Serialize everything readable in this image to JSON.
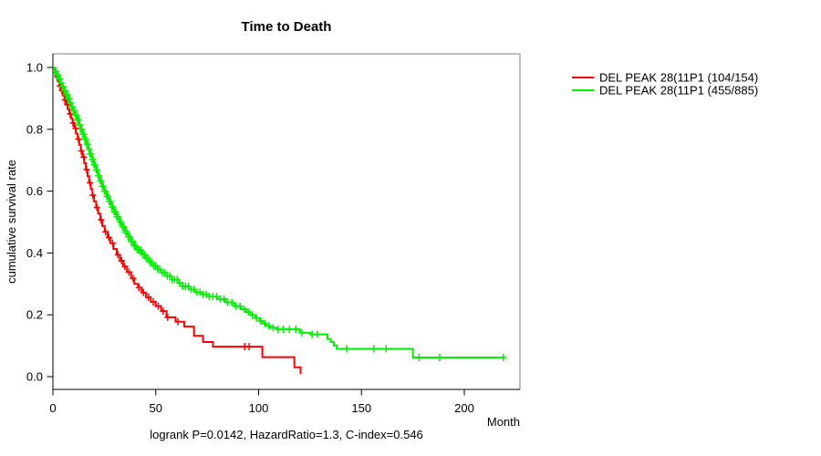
{
  "chart_data": {
    "type": "line",
    "subtype": "kaplan-meier-step-curves",
    "title": "Time to Death",
    "xlabel": "Month",
    "ylabel": "cumulative survival rate",
    "annotation": "logrank P=0.0142, HazardRatio=1.3, C-index=0.546",
    "xlim": [
      0,
      227
    ],
    "ylim": [
      0.0,
      1.0
    ],
    "xticks": [
      0,
      50,
      100,
      150,
      200
    ],
    "xtick_labels": [
      "0",
      "50",
      "100",
      "150",
      "200"
    ],
    "yticks": [
      0.0,
      0.2,
      0.4,
      0.6,
      0.8,
      1.0
    ],
    "ytick_labels": [
      "0.0",
      "0.2",
      "0.4",
      "0.6",
      "0.8",
      "1.0"
    ],
    "grid": false,
    "legend_position": "right-outside",
    "frame_color": "#808080",
    "axis_color": "#000000",
    "series": [
      {
        "name": "DEL PEAK 28(11P1 (104/154)",
        "color": "#ff0000",
        "events_total": "104/154",
        "steps": [
          [
            0,
            1
          ],
          [
            0.8,
            0.985
          ],
          [
            1.6,
            0.97
          ],
          [
            2.4,
            0.955
          ],
          [
            3.2,
            0.94
          ],
          [
            4,
            0.925
          ],
          [
            4.8,
            0.91
          ],
          [
            5.6,
            0.895
          ],
          [
            6.4,
            0.88
          ],
          [
            7.2,
            0.865
          ],
          [
            8,
            0.85
          ],
          [
            8.8,
            0.835
          ],
          [
            9.6,
            0.82
          ],
          [
            10.4,
            0.803
          ],
          [
            11.2,
            0.786
          ],
          [
            12,
            0.768
          ],
          [
            12.8,
            0.75
          ],
          [
            13.6,
            0.73
          ],
          [
            14.4,
            0.71
          ],
          [
            15.2,
            0.69
          ],
          [
            16,
            0.67
          ],
          [
            16.8,
            0.648
          ],
          [
            17.6,
            0.627
          ],
          [
            18.4,
            0.607
          ],
          [
            19.2,
            0.587
          ],
          [
            20,
            0.567
          ],
          [
            21,
            0.547
          ],
          [
            22,
            0.527
          ],
          [
            23,
            0.507
          ],
          [
            24,
            0.487
          ],
          [
            25.2,
            0.468
          ],
          [
            26.6,
            0.45
          ],
          [
            28,
            0.432
          ],
          [
            29.4,
            0.413
          ],
          [
            31,
            0.394
          ],
          [
            32.6,
            0.375
          ],
          [
            34.2,
            0.356
          ],
          [
            36,
            0.338
          ],
          [
            38,
            0.318
          ],
          [
            39.6,
            0.3
          ],
          [
            41.4,
            0.288
          ],
          [
            43.2,
            0.272
          ],
          [
            45.2,
            0.257
          ],
          [
            47.6,
            0.242
          ],
          [
            50,
            0.228
          ],
          [
            52.6,
            0.212
          ],
          [
            55.2,
            0.192
          ],
          [
            59.6,
            0.178
          ],
          [
            63.8,
            0.162
          ],
          [
            68.6,
            0.132
          ],
          [
            73,
            0.112
          ],
          [
            77.8,
            0.097
          ],
          [
            101.8,
            0.063
          ],
          [
            117.4,
            0.03
          ],
          [
            120.4,
            0.008
          ]
        ],
        "censor_months": [
          2.2,
          3.4,
          4.4,
          5.8,
          7,
          8.4,
          9.8,
          11,
          12.4,
          13.8,
          15,
          16.4,
          18,
          19.4,
          21.4,
          23.4,
          25.6,
          27.2,
          29,
          31.6,
          33.4,
          35,
          37,
          39,
          41.8,
          44,
          46.4,
          48.8,
          51.2,
          53.6,
          55.8,
          60.8,
          93.2,
          95.4
        ]
      },
      {
        "name": "DEL PEAK 28(11P1 (455/885)",
        "color": "#00ee00",
        "events_total": "455/885",
        "steps": [
          [
            0,
            1
          ],
          [
            0.9,
            0.988
          ],
          [
            1.8,
            0.976
          ],
          [
            2.7,
            0.963
          ],
          [
            3.6,
            0.95
          ],
          [
            4.5,
            0.938
          ],
          [
            5.4,
            0.925
          ],
          [
            6.3,
            0.912
          ],
          [
            7.2,
            0.899
          ],
          [
            8.1,
            0.886
          ],
          [
            9,
            0.873
          ],
          [
            9.9,
            0.86
          ],
          [
            10.8,
            0.845
          ],
          [
            11.7,
            0.83
          ],
          [
            12.6,
            0.815
          ],
          [
            13.5,
            0.8
          ],
          [
            14.4,
            0.784
          ],
          [
            15.3,
            0.768
          ],
          [
            16.2,
            0.752
          ],
          [
            17.1,
            0.736
          ],
          [
            18,
            0.72
          ],
          [
            19,
            0.702
          ],
          [
            20,
            0.685
          ],
          [
            21,
            0.668
          ],
          [
            22,
            0.65
          ],
          [
            23,
            0.633
          ],
          [
            24,
            0.616
          ],
          [
            25,
            0.6
          ],
          [
            26.2,
            0.583
          ],
          [
            27.4,
            0.566
          ],
          [
            28.6,
            0.549
          ],
          [
            29.8,
            0.533
          ],
          [
            31,
            0.517
          ],
          [
            32.4,
            0.5
          ],
          [
            33.8,
            0.484
          ],
          [
            35.2,
            0.468
          ],
          [
            36.6,
            0.452
          ],
          [
            38,
            0.437
          ],
          [
            39.5,
            0.423
          ],
          [
            41,
            0.41
          ],
          [
            43,
            0.396
          ],
          [
            45,
            0.383
          ],
          [
            47,
            0.37
          ],
          [
            49,
            0.358
          ],
          [
            51,
            0.347
          ],
          [
            53,
            0.336
          ],
          [
            55.5,
            0.325
          ],
          [
            58,
            0.314
          ],
          [
            60.5,
            0.303
          ],
          [
            63,
            0.292
          ],
          [
            66,
            0.282
          ],
          [
            69,
            0.273
          ],
          [
            72.5,
            0.266
          ],
          [
            76,
            0.259
          ],
          [
            80,
            0.251
          ],
          [
            84,
            0.24
          ],
          [
            88,
            0.228
          ],
          [
            91.5,
            0.218
          ],
          [
            94,
            0.209
          ],
          [
            96,
            0.199
          ],
          [
            98.5,
            0.19
          ],
          [
            100.5,
            0.18
          ],
          [
            102,
            0.172
          ],
          [
            103.5,
            0.164
          ],
          [
            105.5,
            0.158
          ],
          [
            109,
            0.153
          ],
          [
            120,
            0.142
          ],
          [
            125,
            0.137
          ],
          [
            133.5,
            0.122
          ],
          [
            135,
            0.112
          ],
          [
            136.5,
            0.101
          ],
          [
            138,
            0.09
          ],
          [
            175,
            0.062
          ],
          [
            219,
            0.062
          ]
        ],
        "censor_months": [
          1,
          1.5,
          2,
          2.5,
          3,
          3.5,
          4,
          4.5,
          5,
          5.5,
          6,
          6.5,
          7,
          7.5,
          8,
          8.5,
          9,
          9.5,
          10,
          10.5,
          11,
          11.5,
          12,
          12.5,
          13,
          13.5,
          14,
          14.5,
          15,
          15.5,
          16,
          16.5,
          17,
          17.5,
          18,
          18.5,
          19,
          19.5,
          20,
          20.5,
          21,
          21.5,
          22,
          22.5,
          23,
          23.5,
          24,
          24.5,
          25,
          25.6,
          26.2,
          26.8,
          27.4,
          28,
          28.6,
          29.2,
          29.8,
          30.4,
          31,
          31.7,
          32.4,
          33.1,
          33.8,
          34.5,
          35.2,
          35.9,
          36.6,
          37.3,
          38,
          38.8,
          39.5,
          40.2,
          41,
          41.8,
          42.6,
          43.5,
          44.4,
          45.3,
          46.2,
          47.1,
          48,
          49,
          50,
          51,
          52,
          53.2,
          54.4,
          55.6,
          56.8,
          58,
          59.2,
          60.4,
          61.6,
          63,
          64.4,
          65.8,
          67.2,
          68.6,
          70,
          71.5,
          73,
          74.5,
          76,
          77.8,
          79.6,
          81.4,
          83.2,
          85,
          87,
          89,
          91,
          93,
          95,
          97,
          99,
          101,
          103,
          105,
          107,
          109.5,
          112,
          115,
          118,
          121,
          126,
          128.5,
          142.8,
          156,
          162,
          178,
          188,
          219
        ]
      }
    ]
  }
}
